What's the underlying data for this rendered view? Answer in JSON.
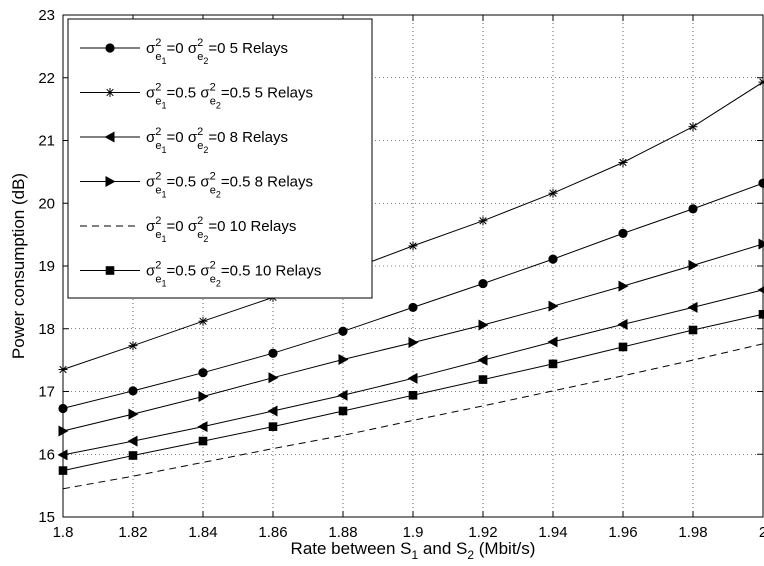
{
  "chart_data": {
    "type": "line",
    "xlabel": "Rate between S1 and S2 (Mbit/s)",
    "xlabel_parts": {
      "pre": "Rate between S",
      "sub1": "1",
      "mid": " and S",
      "sub2": "2",
      "post": " (Mbit/s)"
    },
    "ylabel": "Power consumption (dB)",
    "xlim": [
      1.8,
      2.0
    ],
    "ylim": [
      15,
      23
    ],
    "xticks": [
      1.8,
      1.82,
      1.84,
      1.86,
      1.88,
      1.9,
      1.92,
      1.94,
      1.96,
      1.98,
      2.0
    ],
    "xtick_labels": [
      "1.8",
      "1.82",
      "1.84",
      "1.86",
      "1.88",
      "1.9",
      "1.92",
      "1.94",
      "1.96",
      "1.98",
      "2"
    ],
    "yticks": [
      15,
      16,
      17,
      18,
      19,
      20,
      21,
      22,
      23
    ],
    "ytick_labels": [
      "15",
      "16",
      "17",
      "18",
      "19",
      "20",
      "21",
      "22",
      "23"
    ],
    "grid": true,
    "legend_position": "top-left",
    "x": [
      1.8,
      1.82,
      1.84,
      1.86,
      1.88,
      1.9,
      1.92,
      1.94,
      1.96,
      1.98,
      2.0
    ],
    "series": [
      {
        "name": "σ²e1=0  σ²e2=0  5 Relays",
        "v1": "0",
        "v2": "0",
        "relays": "5 Relays",
        "marker": "circle",
        "dash": false,
        "values": [
          16.73,
          17.01,
          17.3,
          17.61,
          17.96,
          18.34,
          18.72,
          19.11,
          19.52,
          19.91,
          20.32
        ]
      },
      {
        "name": "σ²e1=0.5 σ²e2=0.5  5 Relays",
        "v1": "0.5",
        "v2": "0.5",
        "relays": "5 Relays",
        "marker": "star",
        "dash": false,
        "values": [
          17.35,
          17.73,
          18.12,
          18.5,
          18.9,
          19.32,
          19.72,
          20.16,
          20.65,
          21.22,
          21.93
        ]
      },
      {
        "name": "σ²e1=0  σ²e2=0  8 Relays",
        "v1": "0",
        "v2": "0",
        "relays": "8 Relays",
        "marker": "triangle-left",
        "dash": false,
        "values": [
          15.99,
          16.21,
          16.44,
          16.69,
          16.94,
          17.21,
          17.5,
          17.79,
          18.07,
          18.34,
          18.62
        ]
      },
      {
        "name": "σ²e1=0.5  σ²e2=0.5  8 Relays",
        "v1": "0.5",
        "v2": "0.5",
        "relays": "8 Relays",
        "marker": "triangle-right",
        "dash": false,
        "values": [
          16.37,
          16.64,
          16.92,
          17.22,
          17.51,
          17.78,
          18.06,
          18.36,
          18.68,
          19.01,
          19.35
        ]
      },
      {
        "name": "σ²e1=0  σ²e2=0  10 Relays",
        "v1": "0",
        "v2": "0",
        "relays": "10 Relays",
        "marker": "none",
        "dash": true,
        "values": [
          15.45,
          15.65,
          15.87,
          16.09,
          16.3,
          16.54,
          16.77,
          17.01,
          17.25,
          17.5,
          17.76
        ]
      },
      {
        "name": "σ²e1=0.5  σ²e2=0.5  10 Relays",
        "v1": "0.5",
        "v2": "0.5",
        "relays": "10 Relays",
        "marker": "square",
        "dash": false,
        "values": [
          15.74,
          15.98,
          16.21,
          16.44,
          16.69,
          16.94,
          17.19,
          17.44,
          17.71,
          17.98,
          18.23
        ]
      }
    ],
    "legend_symbol": {
      "sigma": "σ",
      "sup": "2",
      "sub_letter": "e",
      "sub1": "1",
      "sub2": "2",
      "eq": "="
    }
  }
}
